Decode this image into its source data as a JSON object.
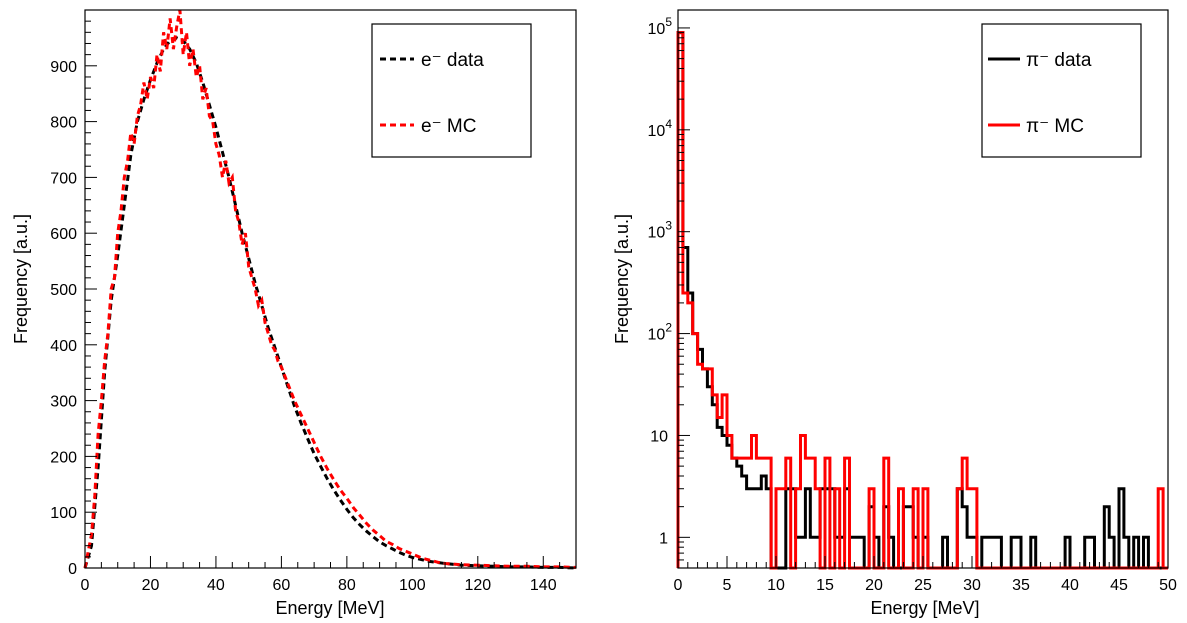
{
  "chart_data": [
    {
      "type": "line",
      "xlabel": "Energy [MeV]",
      "ylabel": "Frequency [a.u.]",
      "xlim": [
        0,
        150
      ],
      "ylim": [
        0,
        1000
      ],
      "xticks": [
        0,
        20,
        40,
        60,
        80,
        100,
        120,
        140
      ],
      "yticks": [
        0,
        100,
        200,
        300,
        400,
        500,
        600,
        700,
        800,
        900
      ],
      "legend_position": "top-right",
      "series": [
        {
          "name": "e⁻ data",
          "color": "#000000",
          "style": "dashed",
          "x": [
            0,
            2,
            4,
            6,
            8,
            10,
            12,
            14,
            16,
            18,
            20,
            22,
            24,
            26,
            28,
            30,
            32,
            34,
            36,
            38,
            40,
            42,
            44,
            46,
            48,
            50,
            52,
            54,
            56,
            58,
            60,
            62,
            64,
            66,
            68,
            70,
            72,
            74,
            76,
            78,
            80,
            82,
            84,
            86,
            88,
            90,
            92,
            94,
            96,
            98,
            100,
            105,
            110,
            115,
            120,
            125,
            130,
            135,
            140,
            145,
            150
          ],
          "values": [
            0,
            40,
            180,
            350,
            480,
            560,
            650,
            740,
            800,
            840,
            875,
            905,
            930,
            945,
            950,
            945,
            930,
            905,
            870,
            830,
            790,
            745,
            700,
            650,
            600,
            555,
            510,
            470,
            430,
            395,
            360,
            325,
            290,
            260,
            232,
            205,
            182,
            160,
            140,
            122,
            105,
            90,
            77,
            66,
            56,
            47,
            40,
            34,
            28,
            23,
            19,
            12,
            8,
            5,
            4,
            3,
            2,
            2,
            1,
            1,
            0
          ]
        },
        {
          "name": "e⁻ MC",
          "color": "#ff0000",
          "style": "dashed",
          "x": [
            0,
            2,
            3,
            4,
            5,
            6,
            7,
            8,
            9,
            10,
            11,
            12,
            13,
            14,
            15,
            16,
            17,
            18,
            19,
            20,
            21,
            22,
            23,
            24,
            25,
            26,
            27,
            28,
            29,
            30,
            31,
            32,
            33,
            34,
            35,
            36,
            37,
            38,
            39,
            40,
            41,
            42,
            43,
            44,
            45,
            46,
            47,
            48,
            49,
            50,
            51,
            52,
            53,
            54,
            55,
            56,
            57,
            58,
            59,
            60,
            62,
            64,
            66,
            68,
            70,
            72,
            74,
            76,
            78,
            80,
            82,
            84,
            86,
            88,
            90,
            92,
            94,
            96,
            98,
            100,
            102,
            104,
            106,
            108,
            110,
            115,
            120,
            125,
            130,
            135,
            140,
            145,
            150
          ],
          "values": [
            0,
            60,
            130,
            240,
            300,
            370,
            420,
            500,
            520,
            600,
            640,
            700,
            730,
            780,
            760,
            810,
            830,
            870,
            840,
            880,
            860,
            920,
            890,
            960,
            930,
            985,
            930,
            970,
            1000,
            920,
            960,
            900,
            930,
            880,
            900,
            840,
            860,
            810,
            800,
            760,
            740,
            700,
            730,
            690,
            700,
            640,
            620,
            580,
            600,
            540,
            520,
            500,
            470,
            480,
            440,
            420,
            400,
            390,
            370,
            360,
            330,
            300,
            275,
            250,
            225,
            200,
            178,
            158,
            140,
            125,
            108,
            94,
            80,
            68,
            58,
            48,
            42,
            35,
            30,
            25,
            20,
            16,
            13,
            10,
            8,
            6,
            5,
            4,
            3,
            3,
            2,
            2,
            1
          ]
        }
      ]
    },
    {
      "type": "line",
      "xlabel": "Energy [MeV]",
      "ylabel": "Frequency [a.u.]",
      "xlim": [
        0,
        50
      ],
      "ylim": [
        0.5,
        150000
      ],
      "yscale": "log",
      "xticks": [
        0,
        5,
        10,
        15,
        20,
        25,
        30,
        35,
        40,
        45,
        50
      ],
      "yticks": [
        1,
        10,
        100,
        1000,
        10000,
        100000
      ],
      "ytick_labels_base": "10",
      "ytick_labels_exp": [
        "",
        "",
        "2",
        "3",
        "4",
        "5"
      ],
      "ytick_labels_plain": [
        "1",
        "10",
        "",
        "",
        "",
        ""
      ],
      "legend_position": "top-right",
      "bin_edges": [
        0,
        0.5,
        1,
        1.5,
        2,
        2.5,
        3,
        3.5,
        4,
        4.5,
        5,
        5.5,
        6,
        6.5,
        7,
        7.5,
        8,
        8.5,
        9,
        9.5,
        10,
        10.5,
        11,
        11.5,
        12,
        12.5,
        13,
        13.5,
        14,
        14.5,
        15,
        15.5,
        16,
        16.5,
        17,
        17.5,
        18,
        18.5,
        19,
        19.5,
        20,
        20.5,
        21,
        21.5,
        22,
        22.5,
        23,
        23.5,
        24,
        24.5,
        25,
        25.5,
        26,
        26.5,
        27,
        27.5,
        28,
        28.5,
        29,
        29.5,
        30,
        30.5,
        31,
        31.5,
        32,
        32.5,
        33,
        33.5,
        34,
        34.5,
        35,
        35.5,
        36,
        36.5,
        37,
        37.5,
        38,
        38.5,
        39,
        39.5,
        40,
        40.5,
        41,
        41.5,
        42,
        42.5,
        43,
        43.5,
        44,
        44.5,
        45,
        45.5,
        46,
        46.5,
        47,
        47.5,
        48,
        48.5,
        49,
        49.5,
        50
      ],
      "series": [
        {
          "name": "π⁻ data",
          "color": "#000000",
          "style": "step",
          "values": [
            90000,
            700,
            250,
            100,
            70,
            45,
            30,
            20,
            12,
            10,
            8,
            6,
            5,
            4,
            3,
            3,
            3,
            4,
            3,
            0.4,
            0.4,
            0.4,
            3,
            3,
            1,
            1,
            3,
            1,
            1,
            3,
            3,
            3,
            1,
            1,
            3,
            1,
            1,
            1,
            0.4,
            2,
            1,
            0.4,
            2,
            1,
            0.4,
            0.4,
            2,
            2,
            1,
            0.4,
            1,
            0.4,
            0.4,
            0.4,
            1,
            0.4,
            0.4,
            3,
            2,
            1,
            1,
            0.4,
            1,
            1,
            1,
            1,
            0.4,
            0.4,
            1,
            1,
            0.4,
            0.4,
            1,
            0.4,
            0.4,
            0.4,
            0.4,
            0.4,
            0.4,
            1,
            0.4,
            0.4,
            0.4,
            1,
            1,
            0.4,
            0.4,
            2,
            1,
            0.4,
            3,
            1,
            0.4,
            1,
            0.4,
            1,
            0.4,
            0.4,
            0.4,
            0.4
          ]
        },
        {
          "name": "π⁻ MC",
          "color": "#ff0000",
          "style": "step",
          "values": [
            90000,
            250,
            200,
            100,
            50,
            45,
            45,
            25,
            15,
            25,
            10,
            6,
            6,
            6,
            6,
            10,
            6,
            6,
            6,
            0.4,
            3,
            3,
            6,
            0.4,
            3,
            10,
            6,
            6,
            3,
            0.4,
            6,
            0.4,
            3,
            0.4,
            6,
            0.4,
            0.4,
            0.4,
            0.4,
            3,
            0.4,
            0.4,
            6,
            0.4,
            0.4,
            3,
            0.4,
            0.4,
            3,
            0.4,
            3,
            0.4,
            0.4,
            0.4,
            0.4,
            0.4,
            0.4,
            3,
            6,
            3,
            3,
            0.4,
            0.4,
            0.4,
            0.4,
            0.4,
            0.4,
            0.4,
            0.4,
            0.4,
            0.4,
            0.4,
            0.4,
            0.4,
            0.4,
            0.4,
            0.4,
            0.4,
            0.4,
            0.4,
            0.4,
            0.4,
            0.4,
            0.4,
            0.4,
            0.4,
            0.4,
            0.4,
            0.4,
            0.4,
            0.4,
            0.4,
            0.4,
            0.4,
            0.4,
            0.4,
            0.4,
            0.4,
            3,
            0.4
          ]
        }
      ]
    }
  ]
}
